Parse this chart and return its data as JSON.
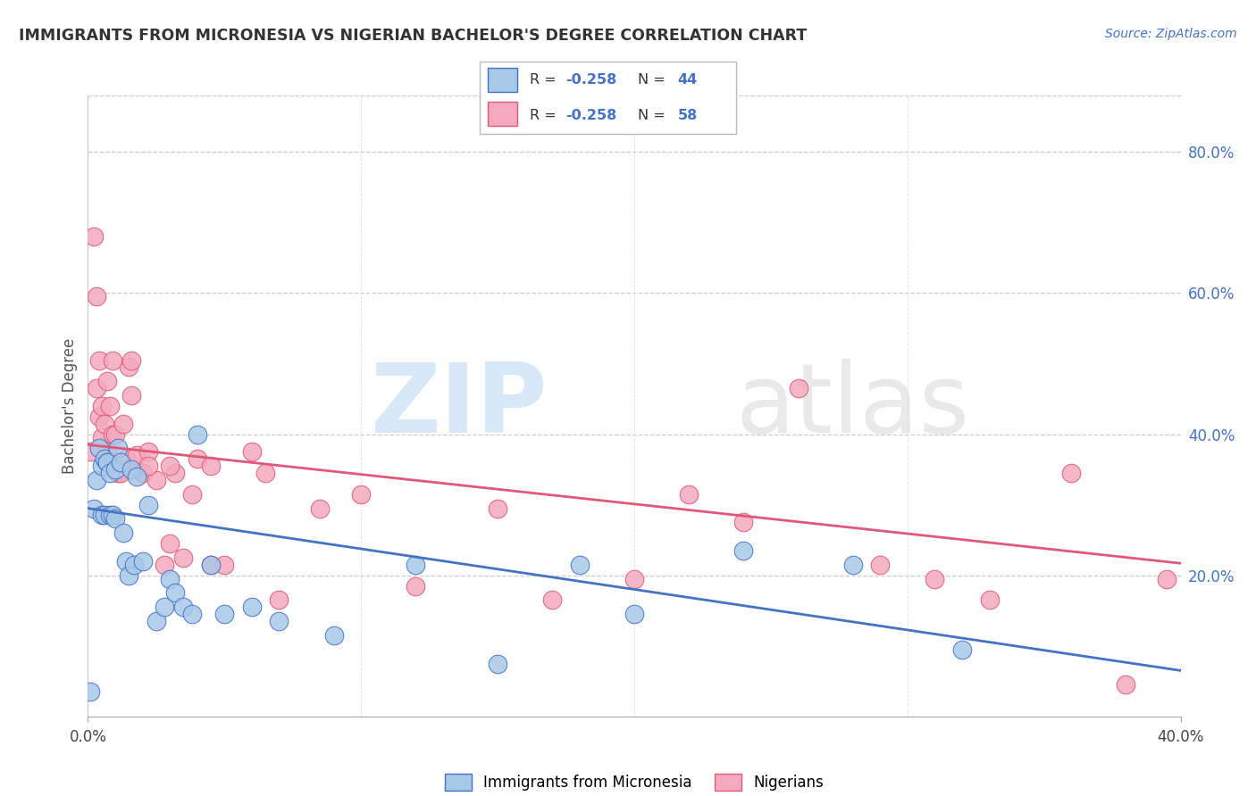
{
  "title": "IMMIGRANTS FROM MICRONESIA VS NIGERIAN BACHELOR'S DEGREE CORRELATION CHART",
  "source": "Source: ZipAtlas.com",
  "ylabel": "Bachelor's Degree",
  "xlabel_legend1": "Immigrants from Micronesia",
  "xlabel_legend2": "Nigerians",
  "x_min": 0.0,
  "x_max": 0.4,
  "y_min": 0.0,
  "y_max": 0.88,
  "x_ticks": [
    0.0,
    0.4
  ],
  "x_tick_labels": [
    "0.0%",
    "40.0%"
  ],
  "y_ticks_right": [
    0.2,
    0.4,
    0.6,
    0.8
  ],
  "y_tick_labels_right": [
    "20.0%",
    "40.0%",
    "60.0%",
    "80.0%"
  ],
  "blue_color": "#a8c8e8",
  "pink_color": "#f4aabe",
  "blue_line_color": "#4472c4",
  "pink_line_color": "#e05878",
  "blue_x": [
    0.001,
    0.002,
    0.003,
    0.004,
    0.005,
    0.005,
    0.006,
    0.006,
    0.007,
    0.007,
    0.008,
    0.008,
    0.009,
    0.01,
    0.01,
    0.011,
    0.012,
    0.013,
    0.014,
    0.015,
    0.016,
    0.017,
    0.018,
    0.02,
    0.022,
    0.025,
    0.028,
    0.03,
    0.032,
    0.035,
    0.038,
    0.04,
    0.045,
    0.05,
    0.06,
    0.07,
    0.09,
    0.12,
    0.15,
    0.18,
    0.2,
    0.24,
    0.28,
    0.32
  ],
  "blue_y": [
    0.035,
    0.295,
    0.335,
    0.38,
    0.355,
    0.285,
    0.365,
    0.285,
    0.36,
    0.36,
    0.345,
    0.285,
    0.285,
    0.35,
    0.28,
    0.38,
    0.36,
    0.26,
    0.22,
    0.2,
    0.35,
    0.215,
    0.34,
    0.22,
    0.3,
    0.135,
    0.155,
    0.195,
    0.175,
    0.155,
    0.145,
    0.4,
    0.215,
    0.145,
    0.155,
    0.135,
    0.115,
    0.215,
    0.075,
    0.215,
    0.145,
    0.235,
    0.215,
    0.095
  ],
  "pink_x": [
    0.001,
    0.002,
    0.003,
    0.004,
    0.005,
    0.005,
    0.006,
    0.007,
    0.008,
    0.009,
    0.01,
    0.01,
    0.011,
    0.012,
    0.013,
    0.014,
    0.015,
    0.016,
    0.017,
    0.018,
    0.02,
    0.022,
    0.025,
    0.028,
    0.03,
    0.032,
    0.035,
    0.038,
    0.04,
    0.045,
    0.05,
    0.06,
    0.07,
    0.085,
    0.1,
    0.12,
    0.15,
    0.17,
    0.2,
    0.22,
    0.24,
    0.26,
    0.29,
    0.31,
    0.33,
    0.36,
    0.38,
    0.395,
    0.003,
    0.004,
    0.007,
    0.009,
    0.012,
    0.016,
    0.022,
    0.03,
    0.045,
    0.065
  ],
  "pink_y": [
    0.375,
    0.68,
    0.465,
    0.425,
    0.44,
    0.395,
    0.415,
    0.375,
    0.44,
    0.4,
    0.4,
    0.36,
    0.345,
    0.35,
    0.415,
    0.365,
    0.495,
    0.455,
    0.355,
    0.37,
    0.345,
    0.375,
    0.335,
    0.215,
    0.245,
    0.345,
    0.225,
    0.315,
    0.365,
    0.215,
    0.215,
    0.375,
    0.165,
    0.295,
    0.315,
    0.185,
    0.295,
    0.165,
    0.195,
    0.315,
    0.275,
    0.465,
    0.215,
    0.195,
    0.165,
    0.345,
    0.045,
    0.195,
    0.595,
    0.505,
    0.475,
    0.505,
    0.345,
    0.505,
    0.355,
    0.355,
    0.355,
    0.345
  ],
  "blue_intercept": 0.295,
  "blue_slope": -0.575,
  "pink_intercept": 0.385,
  "pink_slope": -0.42
}
